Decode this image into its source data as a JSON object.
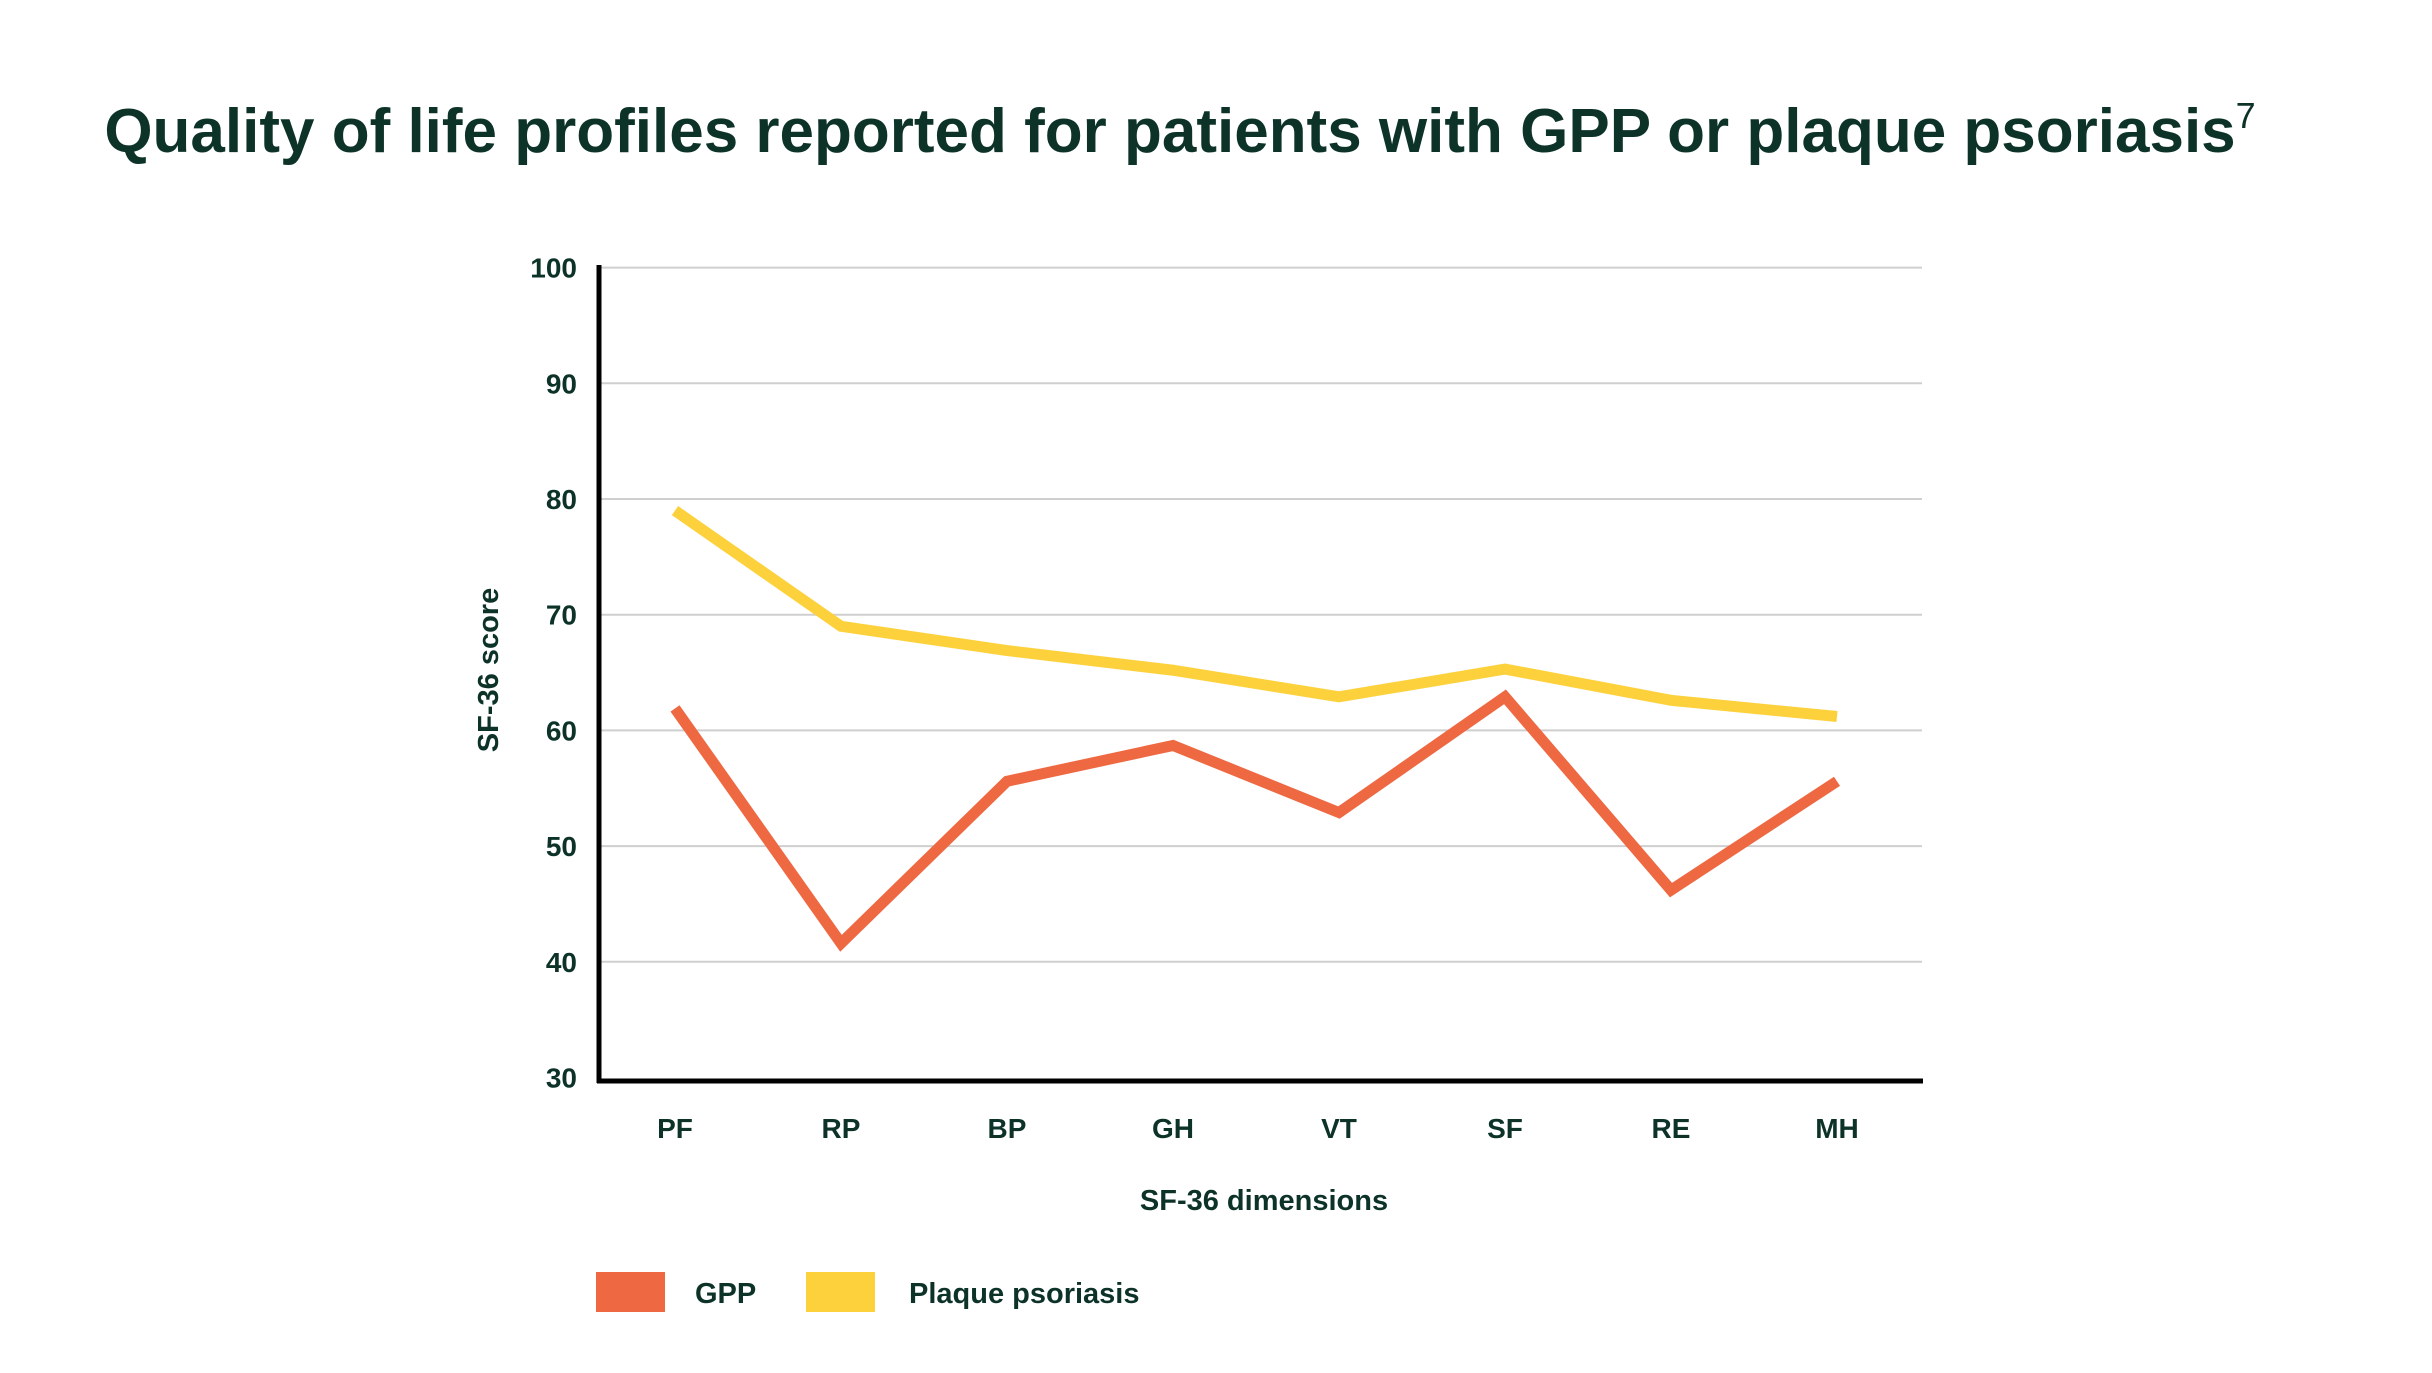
{
  "chart_data": {
    "type": "line",
    "title": "Quality of life profiles reported for patients with GPP or plaque psoriasis",
    "title_superscript": "7",
    "xlabel": "SF-36 dimensions",
    "ylabel": "SF-36 score",
    "ylim": [
      30,
      100
    ],
    "yticks": [
      "30",
      "40",
      "50",
      "60",
      "70",
      "80",
      "90",
      "100"
    ],
    "grid": true,
    "legend_position": "bottom-left",
    "categories": [
      "PF",
      "RP",
      "BP",
      "GH",
      "VT",
      "SF",
      "RE",
      "MH"
    ],
    "series": [
      {
        "name": "GPP",
        "color": "#ee6842",
        "values": [
          61.9,
          41.6,
          55.6,
          58.7,
          52.9,
          62.9,
          46.2,
          55.6
        ]
      },
      {
        "name": "Plaque psoriasis",
        "color": "#fdd13c",
        "values": [
          79.0,
          69.0,
          66.9,
          65.2,
          62.9,
          65.3,
          62.6,
          61.2
        ]
      }
    ]
  }
}
